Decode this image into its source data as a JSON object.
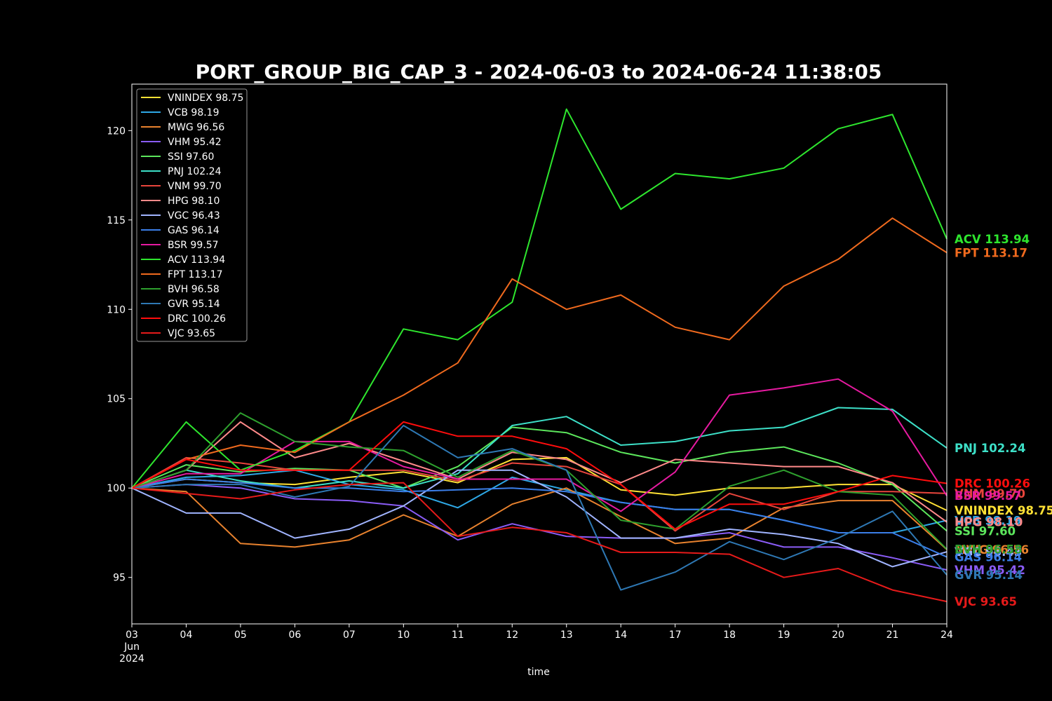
{
  "chart_data": {
    "type": "line",
    "title": "PORT_GROUP_BIG_CAP_3 - 2024-06-03 to 2024-06-24 11:38:05",
    "xlabel": "time",
    "ylabel": "",
    "x": [
      "2024-06-03",
      "2024-06-04",
      "2024-06-05",
      "2024-06-06",
      "2024-06-07",
      "2024-06-10",
      "2024-06-11",
      "2024-06-12",
      "2024-06-13",
      "2024-06-14",
      "2024-06-17",
      "2024-06-18",
      "2024-06-19",
      "2024-06-20",
      "2024-06-21",
      "2024-06-24"
    ],
    "x_tick_labels": [
      {
        "lines": [
          "03",
          "Jun",
          "2024"
        ]
      },
      {
        "lines": [
          "04"
        ]
      },
      {
        "lines": [
          "05"
        ]
      },
      {
        "lines": [
          "06"
        ]
      },
      {
        "lines": [
          "07"
        ]
      },
      {
        "lines": [
          "10"
        ]
      },
      {
        "lines": [
          "11"
        ]
      },
      {
        "lines": [
          "12"
        ]
      },
      {
        "lines": [
          "13"
        ]
      },
      {
        "lines": [
          "14"
        ]
      },
      {
        "lines": [
          "17"
        ]
      },
      {
        "lines": [
          "18"
        ]
      },
      {
        "lines": [
          "19"
        ]
      },
      {
        "lines": [
          "20"
        ]
      },
      {
        "lines": [
          "21"
        ]
      },
      {
        "lines": [
          "24"
        ]
      }
    ],
    "yticks": [
      95,
      100,
      105,
      110,
      115,
      120
    ],
    "ylim": [
      92.4,
      122.6
    ],
    "grid": false,
    "legend_position": "upper-left",
    "series": [
      {
        "name": "VNINDEX 98.75",
        "end_label": "VNINDEX 98.75",
        "color": "#ffe135",
        "values": [
          100,
          100.5,
          100.3,
          100.2,
          100.6,
          100.9,
          100.3,
          101.6,
          101.7,
          99.9,
          99.6,
          100,
          100,
          100.2,
          100.2,
          98.75
        ]
      },
      {
        "name": "VCB 98.19",
        "end_label": "VCB 98.19",
        "color": "#2ea8e6",
        "values": [
          100,
          100.6,
          100.7,
          101,
          100.2,
          99.9,
          98.9,
          100.6,
          99.9,
          99.2,
          98.8,
          98.8,
          98.2,
          97.5,
          97.5,
          98.19
        ]
      },
      {
        "name": "MWG 96.56",
        "end_label": "MWG 96.56",
        "color": "#e8822e",
        "values": [
          100,
          99.8,
          96.9,
          96.7,
          97.1,
          98.5,
          97.3,
          99.1,
          100,
          98.4,
          96.9,
          97.2,
          98.9,
          99.3,
          99.3,
          96.56
        ]
      },
      {
        "name": "VHM 95.42",
        "end_label": "VHM 95.42",
        "color": "#8a5cf6",
        "values": [
          100,
          100.2,
          100,
          99.4,
          99.3,
          99,
          97.1,
          98,
          97.3,
          97.2,
          97.2,
          97.5,
          96.7,
          96.7,
          96.1,
          95.42
        ]
      },
      {
        "name": "SSI 97.60",
        "end_label": "SSI 97.60",
        "color": "#5ce65c",
        "values": [
          100,
          101.3,
          100.9,
          101.1,
          101,
          100,
          101.2,
          103.4,
          103.1,
          102,
          101.4,
          102,
          102.3,
          101.4,
          100.2,
          97.6
        ]
      },
      {
        "name": "PNJ 102.24",
        "end_label": "PNJ 102.24",
        "color": "#3de0c8",
        "values": [
          100,
          101,
          100.4,
          100,
          100.4,
          100,
          100.8,
          103.5,
          104,
          102.4,
          102.6,
          103.2,
          103.4,
          104.5,
          104.4,
          102.24
        ]
      },
      {
        "name": "VNM 99.70",
        "end_label": "VNM 99.70",
        "color": "#e8453c",
        "values": [
          100,
          101.7,
          101.4,
          101,
          101,
          101,
          100.4,
          101.4,
          101.2,
          100.2,
          97.6,
          99.7,
          98.8,
          99.8,
          99.8,
          99.7
        ]
      },
      {
        "name": "HPG 98.10",
        "end_label": "HPG 98.10",
        "color": "#ff8a8a",
        "values": [
          100,
          101,
          103.7,
          101.7,
          102.5,
          101.5,
          100.5,
          102,
          101.6,
          100.3,
          101.6,
          101.4,
          101.2,
          101.2,
          100.3,
          98.1
        ]
      },
      {
        "name": "VGC 96.43",
        "end_label": "VGC 96.43",
        "color": "#a0b4ff",
        "values": [
          100,
          98.6,
          98.6,
          97.2,
          97.7,
          99,
          101,
          101,
          99.5,
          97.2,
          97.2,
          97.7,
          97.4,
          96.9,
          95.6,
          96.43
        ]
      },
      {
        "name": "GAS 96.14",
        "end_label": "GAS 96.14",
        "color": "#3b7ee8",
        "values": [
          100,
          100.5,
          100.3,
          100,
          100,
          99.8,
          99.9,
          100,
          99.8,
          99.2,
          98.8,
          98.8,
          98.2,
          97.5,
          97.5,
          96.14
        ]
      },
      {
        "name": "BSR 99.57",
        "end_label": "BSR 99.57",
        "color": "#e61aa0",
        "values": [
          100,
          100.8,
          100.8,
          102.6,
          102.6,
          101.2,
          100.5,
          100.5,
          100.5,
          98.7,
          100.9,
          105.2,
          105.6,
          106.1,
          104.3,
          99.57
        ]
      },
      {
        "name": "ACV 113.94",
        "end_label": "ACV 113.94",
        "color": "#2ee62e",
        "values": [
          100,
          103.7,
          101,
          102.1,
          103.7,
          108.9,
          108.3,
          110.4,
          121.2,
          115.6,
          117.6,
          117.3,
          117.9,
          120.1,
          120.9,
          113.94
        ]
      },
      {
        "name": "FPT 113.17",
        "end_label": "FPT 113.17",
        "color": "#f06a1e",
        "values": [
          100,
          101.6,
          102.4,
          102,
          103.7,
          105.2,
          107,
          111.7,
          110,
          110.8,
          109,
          108.3,
          111.3,
          112.8,
          115.1,
          113.17
        ]
      },
      {
        "name": "BVH 96.58",
        "end_label": "BVH 96.58",
        "color": "#2ea02e",
        "values": [
          100,
          101,
          104.2,
          102.6,
          102.3,
          102.1,
          100.6,
          102.1,
          101,
          98.2,
          97.7,
          100.1,
          101,
          99.8,
          99.6,
          96.58
        ]
      },
      {
        "name": "GVR 95.14",
        "end_label": "GVR 95.14",
        "color": "#2e78b4",
        "values": [
          100,
          100.2,
          100.2,
          99.5,
          100.1,
          103.5,
          101.7,
          102.2,
          101,
          94.3,
          95.3,
          97,
          96,
          97.2,
          98.7,
          95.14
        ]
      },
      {
        "name": "DRC 100.26",
        "end_label": "DRC 100.26",
        "color": "#ff0d0d",
        "values": [
          100,
          101.6,
          101,
          101,
          101,
          103.7,
          102.9,
          102.9,
          102.2,
          100.2,
          97.7,
          99.1,
          99.1,
          99.8,
          100.7,
          100.26
        ]
      },
      {
        "name": "VJC 93.65",
        "end_label": "VJC 93.65",
        "color": "#e61a1a",
        "values": [
          100,
          99.7,
          99.4,
          99.9,
          100.2,
          100.3,
          97.3,
          97.8,
          97.5,
          96.4,
          96.4,
          96.3,
          95,
          95.5,
          94.3,
          93.65
        ]
      }
    ]
  }
}
